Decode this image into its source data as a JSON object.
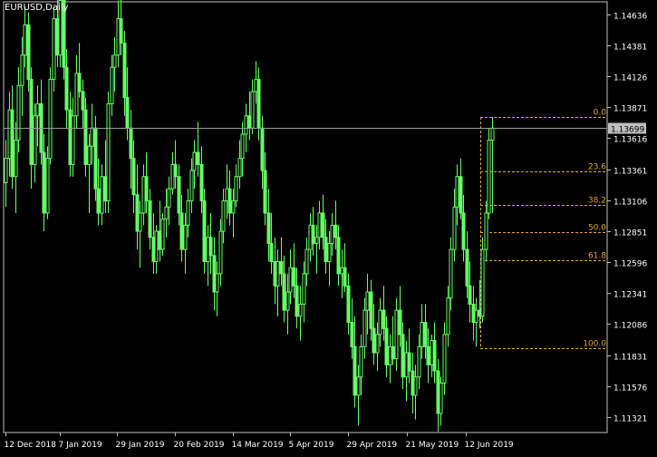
{
  "window": {
    "symbol_label": "EURUSD,Daily"
  },
  "colors": {
    "background": "#000000",
    "frame": "#c0c0c0",
    "candle": "#66ff66",
    "fibonacci": "#e6a23c",
    "current_price_line": "#9a9a9a",
    "price_tag_bg": "#c0c0c0",
    "price_tag_text": "#000000",
    "axis_text": "#ffffff"
  },
  "chart_data": {
    "type": "candlestick",
    "symbol": "EURUSD",
    "timeframe": "Daily",
    "ylim": [
      1.11193,
      1.14739
    ],
    "y_ticks": [
      "1.14636",
      "1.14381",
      "1.14126",
      "1.13871",
      "1.13616",
      "1.13361",
      "1.13106",
      "1.12851",
      "1.12596",
      "1.12341",
      "1.12086",
      "1.11831",
      "1.11576",
      "1.11321"
    ],
    "x_ticks": [
      "12 Dec 2018",
      "7 Jan 2019",
      "29 Jan 2019",
      "20 Feb 2019",
      "14 Mar 2019",
      "5 Apr 2019",
      "29 Apr 2019",
      "21 May 2019",
      "12 Jun 2019"
    ],
    "current_price": "1.13699",
    "fibonacci_retracement": {
      "levels": [
        {
          "label": "0.0",
          "price": 1.1379
        },
        {
          "label": "23.6",
          "price": 1.13341
        },
        {
          "label": "38.2",
          "price": 1.13064
        },
        {
          "label": "50.0",
          "price": 1.1284
        },
        {
          "label": "61.8",
          "price": 1.12615
        },
        {
          "label": "100.0",
          "price": 1.11889
        }
      ]
    },
    "candles": [
      [
        1.1325,
        1.136,
        1.1305,
        1.1345
      ],
      [
        1.1345,
        1.14,
        1.133,
        1.1385
      ],
      [
        1.1385,
        1.1405,
        1.132,
        1.133
      ],
      [
        1.133,
        1.1375,
        1.13,
        1.136
      ],
      [
        1.136,
        1.142,
        1.135,
        1.1405
      ],
      [
        1.1405,
        1.1445,
        1.138,
        1.143
      ],
      [
        1.143,
        1.147,
        1.142,
        1.1455
      ],
      [
        1.1455,
        1.1465,
        1.14,
        1.141
      ],
      [
        1.141,
        1.142,
        1.132,
        1.134
      ],
      [
        1.134,
        1.139,
        1.1325,
        1.138
      ],
      [
        1.138,
        1.1405,
        1.1355,
        1.139
      ],
      [
        1.139,
        1.141,
        1.134,
        1.135
      ],
      [
        1.135,
        1.1365,
        1.1285,
        1.13
      ],
      [
        1.13,
        1.1355,
        1.1295,
        1.1345
      ],
      [
        1.1345,
        1.142,
        1.134,
        1.141
      ],
      [
        1.141,
        1.147,
        1.14,
        1.146
      ],
      [
        1.146,
        1.148,
        1.142,
        1.143
      ],
      [
        1.143,
        1.149,
        1.142,
        1.1475
      ],
      [
        1.1475,
        1.148,
        1.141,
        1.142
      ],
      [
        1.142,
        1.1435,
        1.137,
        1.1385
      ],
      [
        1.1385,
        1.14,
        1.133,
        1.134
      ],
      [
        1.134,
        1.1395,
        1.133,
        1.138
      ],
      [
        1.138,
        1.143,
        1.137,
        1.1415
      ],
      [
        1.1415,
        1.144,
        1.1395,
        1.14
      ],
      [
        1.14,
        1.141,
        1.137,
        1.1385
      ],
      [
        1.1385,
        1.1395,
        1.133,
        1.134
      ],
      [
        1.134,
        1.1365,
        1.13,
        1.1355
      ],
      [
        1.1355,
        1.139,
        1.134,
        1.137
      ],
      [
        1.137,
        1.138,
        1.131,
        1.132
      ],
      [
        1.132,
        1.1345,
        1.129,
        1.13
      ],
      [
        1.13,
        1.134,
        1.129,
        1.133
      ],
      [
        1.133,
        1.136,
        1.13,
        1.131
      ],
      [
        1.131,
        1.14,
        1.13,
        1.139
      ],
      [
        1.139,
        1.143,
        1.138,
        1.142
      ],
      [
        1.142,
        1.1445,
        1.14,
        1.143
      ],
      [
        1.143,
        1.1475,
        1.142,
        1.146
      ],
      [
        1.146,
        1.148,
        1.143,
        1.144
      ],
      [
        1.144,
        1.145,
        1.138,
        1.1395
      ],
      [
        1.1395,
        1.142,
        1.136,
        1.137
      ],
      [
        1.137,
        1.1385,
        1.132,
        1.1345
      ],
      [
        1.1345,
        1.136,
        1.13,
        1.1315
      ],
      [
        1.1315,
        1.134,
        1.127,
        1.1285
      ],
      [
        1.1285,
        1.131,
        1.1255,
        1.13
      ],
      [
        1.13,
        1.134,
        1.129,
        1.133
      ],
      [
        1.133,
        1.135,
        1.13,
        1.131
      ],
      [
        1.131,
        1.132,
        1.127,
        1.128
      ],
      [
        1.128,
        1.13,
        1.125,
        1.126
      ],
      [
        1.126,
        1.129,
        1.125,
        1.1285
      ],
      [
        1.1285,
        1.131,
        1.126,
        1.127
      ],
      [
        1.127,
        1.13,
        1.1265,
        1.1295
      ],
      [
        1.1295,
        1.132,
        1.128,
        1.1305
      ],
      [
        1.1305,
        1.133,
        1.129,
        1.132
      ],
      [
        1.132,
        1.135,
        1.1315,
        1.134
      ],
      [
        1.134,
        1.136,
        1.132,
        1.133
      ],
      [
        1.133,
        1.134,
        1.129,
        1.13
      ],
      [
        1.13,
        1.1315,
        1.126,
        1.127
      ],
      [
        1.127,
        1.13,
        1.125,
        1.129
      ],
      [
        1.129,
        1.132,
        1.128,
        1.131
      ],
      [
        1.131,
        1.1345,
        1.13,
        1.1335
      ],
      [
        1.1335,
        1.136,
        1.132,
        1.135
      ],
      [
        1.135,
        1.1375,
        1.133,
        1.134
      ],
      [
        1.134,
        1.1355,
        1.13,
        1.131
      ],
      [
        1.131,
        1.132,
        1.125,
        1.126
      ],
      [
        1.126,
        1.129,
        1.124,
        1.128
      ],
      [
        1.128,
        1.13,
        1.125,
        1.1265
      ],
      [
        1.1265,
        1.128,
        1.122,
        1.1235
      ],
      [
        1.1235,
        1.126,
        1.1215,
        1.125
      ],
      [
        1.125,
        1.1295,
        1.124,
        1.1285
      ],
      [
        1.1285,
        1.132,
        1.1275,
        1.131
      ],
      [
        1.131,
        1.134,
        1.1295,
        1.132
      ],
      [
        1.132,
        1.1335,
        1.129,
        1.13
      ],
      [
        1.13,
        1.132,
        1.128,
        1.131
      ],
      [
        1.131,
        1.134,
        1.1305,
        1.133
      ],
      [
        1.133,
        1.136,
        1.132,
        1.1345
      ],
      [
        1.1345,
        1.1375,
        1.133,
        1.1365
      ],
      [
        1.1365,
        1.139,
        1.135,
        1.138
      ],
      [
        1.138,
        1.14,
        1.136,
        1.137
      ],
      [
        1.137,
        1.141,
        1.1365,
        1.14
      ],
      [
        1.14,
        1.1425,
        1.139,
        1.141
      ],
      [
        1.141,
        1.142,
        1.136,
        1.137
      ],
      [
        1.137,
        1.138,
        1.132,
        1.1335
      ],
      [
        1.1335,
        1.135,
        1.129,
        1.13
      ],
      [
        1.13,
        1.132,
        1.126,
        1.1275
      ],
      [
        1.1275,
        1.13,
        1.125,
        1.126
      ],
      [
        1.126,
        1.128,
        1.1225,
        1.124
      ],
      [
        1.124,
        1.127,
        1.1215,
        1.126
      ],
      [
        1.126,
        1.128,
        1.124,
        1.125
      ],
      [
        1.125,
        1.1265,
        1.121,
        1.122
      ],
      [
        1.122,
        1.125,
        1.12,
        1.1235
      ],
      [
        1.1235,
        1.127,
        1.1225,
        1.1255
      ],
      [
        1.1255,
        1.1275,
        1.123,
        1.124
      ],
      [
        1.124,
        1.1255,
        1.1205,
        1.1215
      ],
      [
        1.1215,
        1.124,
        1.1195,
        1.1225
      ],
      [
        1.1225,
        1.126,
        1.121,
        1.125
      ],
      [
        1.125,
        1.128,
        1.124,
        1.127
      ],
      [
        1.127,
        1.13,
        1.126,
        1.129
      ],
      [
        1.129,
        1.1305,
        1.1265,
        1.1275
      ],
      [
        1.1275,
        1.129,
        1.125,
        1.128
      ],
      [
        1.128,
        1.131,
        1.127,
        1.13
      ],
      [
        1.13,
        1.1315,
        1.127,
        1.128
      ],
      [
        1.128,
        1.1295,
        1.125,
        1.126
      ],
      [
        1.126,
        1.1285,
        1.124,
        1.1275
      ],
      [
        1.1275,
        1.13,
        1.1265,
        1.129
      ],
      [
        1.129,
        1.131,
        1.127,
        1.128
      ],
      [
        1.128,
        1.129,
        1.124,
        1.125
      ],
      [
        1.125,
        1.127,
        1.123,
        1.1255
      ],
      [
        1.1255,
        1.1275,
        1.1235,
        1.124
      ],
      [
        1.124,
        1.125,
        1.12,
        1.121
      ],
      [
        1.121,
        1.123,
        1.118,
        1.119
      ],
      [
        1.119,
        1.1215,
        1.114,
        1.115
      ],
      [
        1.115,
        1.1175,
        1.1125,
        1.1165
      ],
      [
        1.1165,
        1.12,
        1.115,
        1.119
      ],
      [
        1.119,
        1.123,
        1.118,
        1.122
      ],
      [
        1.122,
        1.125,
        1.12,
        1.1235
      ],
      [
        1.1235,
        1.1245,
        1.1195,
        1.1205
      ],
      [
        1.1205,
        1.1225,
        1.1175,
        1.1185
      ],
      [
        1.1185,
        1.121,
        1.117,
        1.12
      ],
      [
        1.12,
        1.123,
        1.119,
        1.122
      ],
      [
        1.122,
        1.124,
        1.1195,
        1.1205
      ],
      [
        1.1205,
        1.1215,
        1.1165,
        1.1175
      ],
      [
        1.1175,
        1.12,
        1.116,
        1.119
      ],
      [
        1.119,
        1.1215,
        1.1175,
        1.118
      ],
      [
        1.118,
        1.123,
        1.117,
        1.122
      ],
      [
        1.122,
        1.124,
        1.119,
        1.12
      ],
      [
        1.12,
        1.121,
        1.1155,
        1.1165
      ],
      [
        1.1165,
        1.1195,
        1.1145,
        1.1185
      ],
      [
        1.1185,
        1.1205,
        1.116,
        1.117
      ],
      [
        1.117,
        1.1185,
        1.1135,
        1.115
      ],
      [
        1.115,
        1.1175,
        1.113,
        1.1165
      ],
      [
        1.1165,
        1.12,
        1.1155,
        1.119
      ],
      [
        1.119,
        1.1225,
        1.118,
        1.121
      ],
      [
        1.121,
        1.1225,
        1.118,
        1.119
      ],
      [
        1.119,
        1.1205,
        1.116,
        1.1175
      ],
      [
        1.1175,
        1.12,
        1.1165,
        1.1195
      ],
      [
        1.1195,
        1.121,
        1.116,
        1.117
      ],
      [
        1.117,
        1.118,
        1.112,
        1.1135
      ],
      [
        1.1135,
        1.1165,
        1.1125,
        1.116
      ],
      [
        1.116,
        1.121,
        1.115,
        1.12
      ],
      [
        1.12,
        1.124,
        1.119,
        1.123
      ],
      [
        1.123,
        1.128,
        1.122,
        1.127
      ],
      [
        1.127,
        1.132,
        1.126,
        1.1305
      ],
      [
        1.1305,
        1.134,
        1.129,
        1.133
      ],
      [
        1.133,
        1.1345,
        1.1295,
        1.13
      ],
      [
        1.13,
        1.1315,
        1.126,
        1.127
      ],
      [
        1.127,
        1.1285,
        1.123,
        1.124
      ],
      [
        1.124,
        1.126,
        1.121,
        1.1225
      ],
      [
        1.1225,
        1.124,
        1.1195,
        1.121
      ],
      [
        1.121,
        1.123,
        1.119,
        1.122
      ],
      [
        1.122,
        1.1245,
        1.1205,
        1.1215
      ],
      [
        1.1215,
        1.128,
        1.121,
        1.127
      ],
      [
        1.127,
        1.131,
        1.126,
        1.13
      ],
      [
        1.13,
        1.137,
        1.1295,
        1.136
      ],
      [
        1.136,
        1.1379,
        1.13,
        1.137
      ]
    ]
  }
}
